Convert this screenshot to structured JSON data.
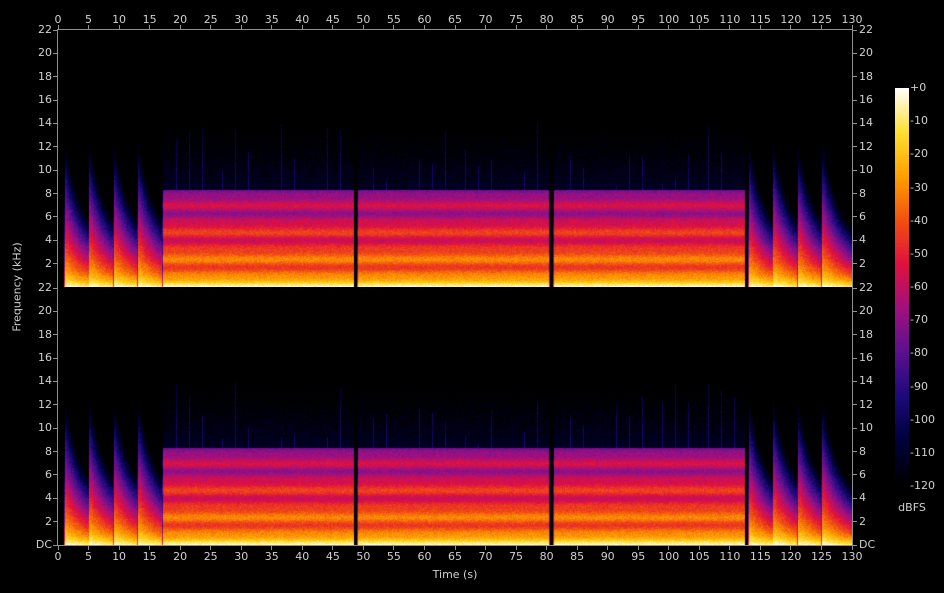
{
  "chart_data": {
    "type": "heatmap",
    "xlabel": "Time (s)",
    "ylabel": "Frequency (kHz)",
    "xlim": [
      0,
      130
    ],
    "ylim": [
      0,
      22
    ],
    "x_ticks": [
      0,
      5,
      10,
      15,
      20,
      25,
      30,
      35,
      40,
      45,
      50,
      55,
      60,
      65,
      70,
      75,
      80,
      85,
      90,
      95,
      100,
      105,
      110,
      115,
      120,
      125,
      130
    ],
    "y_tick_labels": [
      "DC",
      "2",
      "4",
      "6",
      "8",
      "10",
      "12",
      "14",
      "16",
      "18",
      "20",
      "22"
    ],
    "channels": 2,
    "colorbar": {
      "label": "dBFS",
      "range": [
        -120,
        0
      ],
      "ticks": [
        "+0",
        "-10",
        "-20",
        "-30",
        "-40",
        "-50",
        "-60",
        "-70",
        "-80",
        "-90",
        "-100",
        "-110",
        "-120"
      ]
    },
    "colormap": [
      "#000000",
      "#00003a",
      "#1c0a78",
      "#5a1090",
      "#a01080",
      "#e01040",
      "#f25010",
      "#ffa000",
      "#ffe030",
      "#ffffff"
    ],
    "segments": [
      {
        "start": 1,
        "end": 5,
        "kind": "decaying"
      },
      {
        "start": 5,
        "end": 9,
        "kind": "decaying"
      },
      {
        "start": 9,
        "end": 13,
        "kind": "decaying"
      },
      {
        "start": 13,
        "end": 17,
        "kind": "decaying"
      },
      {
        "start": 17,
        "end": 48.5,
        "kind": "sustained"
      },
      {
        "start": 49,
        "end": 80.5,
        "kind": "sustained"
      },
      {
        "start": 81,
        "end": 112.5,
        "kind": "sustained"
      },
      {
        "start": 113,
        "end": 117,
        "kind": "decaying"
      },
      {
        "start": 117,
        "end": 121,
        "kind": "decaying"
      },
      {
        "start": 121,
        "end": 125,
        "kind": "decaying"
      },
      {
        "start": 125,
        "end": 130,
        "kind": "decaying"
      }
    ]
  }
}
